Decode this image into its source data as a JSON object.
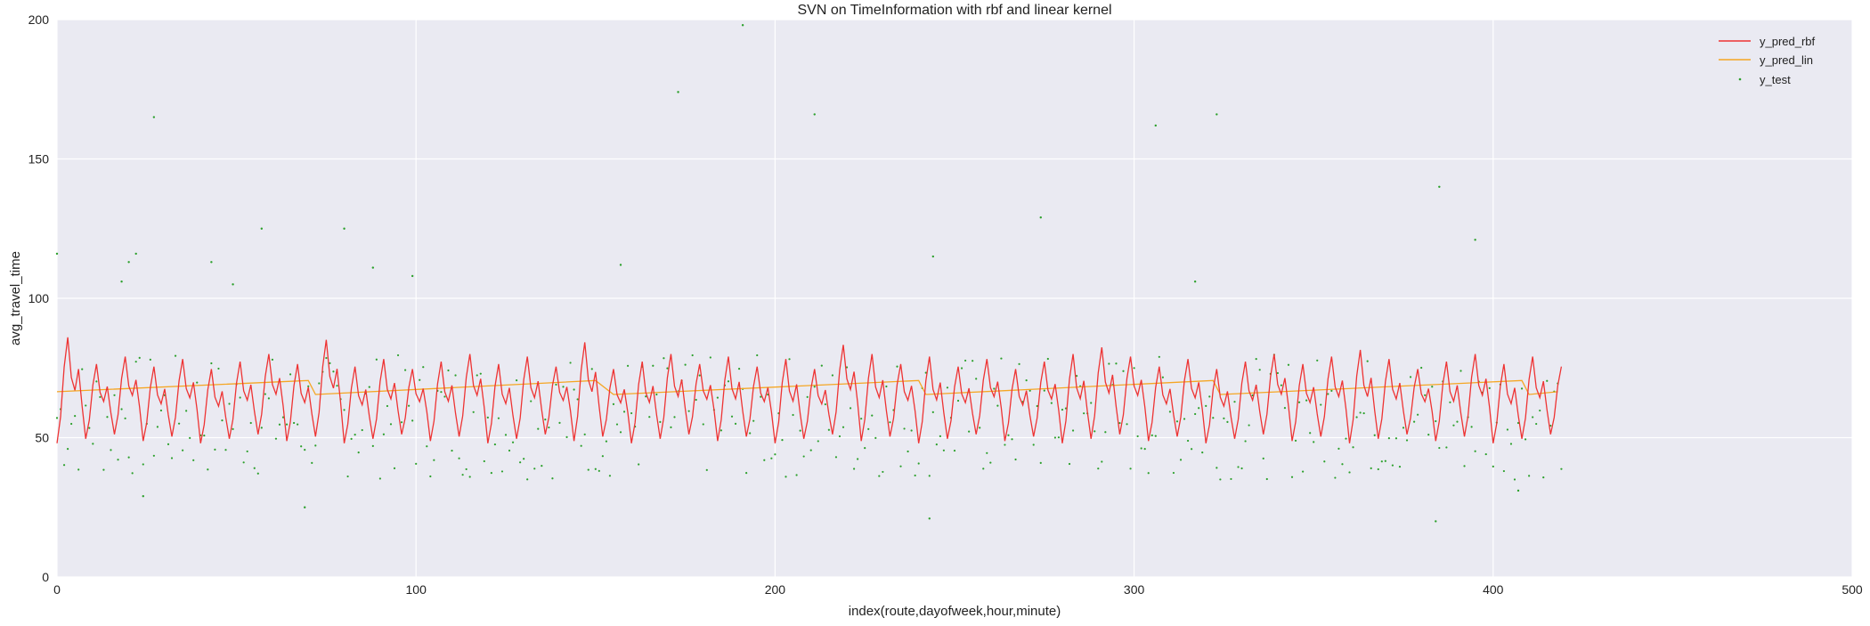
{
  "chart_data": {
    "type": "line",
    "title": "SVN on TimeInformation with rbf and linear kernel",
    "xlabel": "index(route,dayofweek,hour,minute)",
    "ylabel": "avg_travel_time",
    "xlim": [
      0,
      500
    ],
    "ylim": [
      0,
      200
    ],
    "xticks": [
      0,
      100,
      200,
      300,
      400,
      500
    ],
    "yticks": [
      0,
      50,
      100,
      150,
      200
    ],
    "grid": true,
    "legend_position": "top-right",
    "n_points": 420,
    "series": [
      {
        "name": "y_pred_rbf",
        "kind": "line",
        "color": "#ee3333",
        "pattern_period": 8,
        "pattern_min": 48,
        "pattern_max": 80,
        "pattern_peak_max": 86
      },
      {
        "name": "y_pred_lin",
        "kind": "line",
        "color": "#f5a623",
        "segments": [
          {
            "x": [
              0,
              70
            ],
            "y": [
              66.5,
              70.5
            ]
          },
          {
            "x": [
              72,
              150
            ],
            "y": [
              65.5,
              70.5
            ]
          },
          {
            "x": [
              155,
              240
            ],
            "y": [
              65.5,
              70.5
            ]
          },
          {
            "x": [
              242,
              322
            ],
            "y": [
              65.5,
              70.5
            ]
          },
          {
            "x": [
              324,
              408
            ],
            "y": [
              65.5,
              70.5
            ]
          },
          {
            "x": [
              410,
              418
            ],
            "y": [
              65.5,
              66.5
            ]
          }
        ]
      },
      {
        "name": "y_test",
        "kind": "scatter",
        "color": "#2ca02c",
        "typical_range": [
          35,
          80
        ],
        "outliers": [
          {
            "x": 0,
            "y": 116
          },
          {
            "x": 18,
            "y": 106
          },
          {
            "x": 20,
            "y": 113
          },
          {
            "x": 22,
            "y": 116
          },
          {
            "x": 24,
            "y": 29
          },
          {
            "x": 27,
            "y": 165
          },
          {
            "x": 43,
            "y": 113
          },
          {
            "x": 49,
            "y": 105
          },
          {
            "x": 57,
            "y": 125
          },
          {
            "x": 69,
            "y": 25
          },
          {
            "x": 80,
            "y": 125
          },
          {
            "x": 88,
            "y": 111
          },
          {
            "x": 99,
            "y": 108
          },
          {
            "x": 157,
            "y": 112
          },
          {
            "x": 173,
            "y": 174
          },
          {
            "x": 191,
            "y": 198
          },
          {
            "x": 211,
            "y": 166
          },
          {
            "x": 243,
            "y": 21
          },
          {
            "x": 244,
            "y": 115
          },
          {
            "x": 274,
            "y": 129
          },
          {
            "x": 306,
            "y": 162
          },
          {
            "x": 317,
            "y": 106
          },
          {
            "x": 323,
            "y": 166
          },
          {
            "x": 384,
            "y": 20
          },
          {
            "x": 385,
            "y": 140
          },
          {
            "x": 395,
            "y": 121
          },
          {
            "x": 407,
            "y": 31
          }
        ]
      }
    ]
  }
}
